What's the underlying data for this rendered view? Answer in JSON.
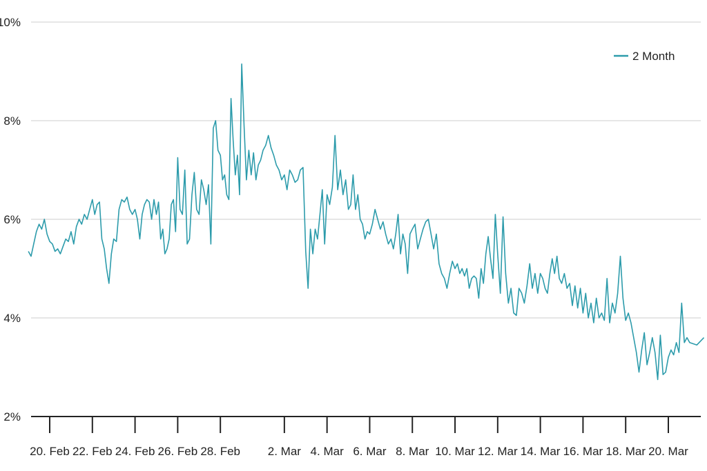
{
  "chart_data": {
    "type": "line",
    "title": "",
    "xlabel": "",
    "ylabel": "",
    "x_range": [
      "2024-02-19",
      "2024-03-21"
    ],
    "ylim": [
      2,
      10
    ],
    "y_ticks": [
      {
        "value": 2,
        "label": "2%"
      },
      {
        "value": 4,
        "label": "4%"
      },
      {
        "value": 6,
        "label": "6%"
      },
      {
        "value": 8,
        "label": "8%"
      },
      {
        "value": 10,
        "label": "10%"
      }
    ],
    "x_ticks": [
      {
        "date": "2024-02-20",
        "label": "20. Feb"
      },
      {
        "date": "2024-02-22",
        "label": "22. Feb"
      },
      {
        "date": "2024-02-24",
        "label": "24. Feb"
      },
      {
        "date": "2024-02-26",
        "label": "26. Feb"
      },
      {
        "date": "2024-02-28",
        "label": "28. Feb"
      },
      {
        "date": "2024-03-02",
        "label": "2. Mar"
      },
      {
        "date": "2024-03-04",
        "label": "4. Mar"
      },
      {
        "date": "2024-03-06",
        "label": "6. Mar"
      },
      {
        "date": "2024-03-08",
        "label": "8. Mar"
      },
      {
        "date": "2024-03-10",
        "label": "10. Mar"
      },
      {
        "date": "2024-03-12",
        "label": "12. Mar"
      },
      {
        "date": "2024-03-14",
        "label": "14. Mar"
      },
      {
        "date": "2024-03-16",
        "label": "16. Mar"
      },
      {
        "date": "2024-03-18",
        "label": "18. Mar"
      },
      {
        "date": "2024-03-20",
        "label": "20. Mar"
      }
    ],
    "grid": true,
    "legend_position": "top-right",
    "series": [
      {
        "name": "2 Month",
        "color": "#2c9bab",
        "points": [
          [
            "2024-02-19",
            5.35
          ],
          [
            "2024-02-19",
            5.25
          ],
          [
            "2024-02-19",
            5.5
          ],
          [
            "2024-02-19",
            5.75
          ],
          [
            "2024-02-19",
            5.9
          ],
          [
            "2024-02-19",
            5.8
          ],
          [
            "2024-02-19",
            6.0
          ],
          [
            "2024-02-19",
            5.7
          ],
          [
            "2024-02-20",
            5.55
          ],
          [
            "2024-02-20",
            5.5
          ],
          [
            "2024-02-20",
            5.35
          ],
          [
            "2024-02-20",
            5.4
          ],
          [
            "2024-02-20",
            5.3
          ],
          [
            "2024-02-20",
            5.45
          ],
          [
            "2024-02-20",
            5.6
          ],
          [
            "2024-02-20",
            5.55
          ],
          [
            "2024-02-21",
            5.75
          ],
          [
            "2024-02-21",
            5.5
          ],
          [
            "2024-02-21",
            5.85
          ],
          [
            "2024-02-21",
            6.0
          ],
          [
            "2024-02-21",
            5.9
          ],
          [
            "2024-02-21",
            6.1
          ],
          [
            "2024-02-21",
            6.0
          ],
          [
            "2024-02-21",
            6.2
          ],
          [
            "2024-02-22",
            6.4
          ],
          [
            "2024-02-22",
            6.1
          ],
          [
            "2024-02-22",
            6.3
          ],
          [
            "2024-02-22",
            6.35
          ],
          [
            "2024-02-22",
            5.6
          ],
          [
            "2024-02-22",
            5.4
          ],
          [
            "2024-02-22",
            5.0
          ],
          [
            "2024-02-22",
            4.7
          ],
          [
            "2024-02-22",
            5.3
          ],
          [
            "2024-02-23",
            5.6
          ],
          [
            "2024-02-23",
            5.55
          ],
          [
            "2024-02-23",
            6.2
          ],
          [
            "2024-02-23",
            6.4
          ],
          [
            "2024-02-23",
            6.35
          ],
          [
            "2024-02-23",
            6.45
          ],
          [
            "2024-02-23",
            6.2
          ],
          [
            "2024-02-23",
            6.1
          ],
          [
            "2024-02-24",
            6.2
          ],
          [
            "2024-02-24",
            6.0
          ],
          [
            "2024-02-24",
            5.6
          ],
          [
            "2024-02-24",
            6.1
          ],
          [
            "2024-02-24",
            6.3
          ],
          [
            "2024-02-24",
            6.4
          ],
          [
            "2024-02-24",
            6.35
          ],
          [
            "2024-02-24",
            6.0
          ],
          [
            "2024-02-24",
            6.4
          ],
          [
            "2024-02-25",
            6.1
          ],
          [
            "2024-02-25",
            6.35
          ],
          [
            "2024-02-25",
            5.6
          ],
          [
            "2024-02-25",
            5.8
          ],
          [
            "2024-02-25",
            5.3
          ],
          [
            "2024-02-25",
            5.4
          ],
          [
            "2024-02-25",
            5.6
          ],
          [
            "2024-02-25",
            6.3
          ],
          [
            "2024-02-25",
            6.4
          ],
          [
            "2024-02-25",
            5.75
          ],
          [
            "2024-02-26",
            7.25
          ],
          [
            "2024-02-26",
            6.2
          ],
          [
            "2024-02-26",
            6.1
          ],
          [
            "2024-02-26",
            7.0
          ],
          [
            "2024-02-26",
            5.5
          ],
          [
            "2024-02-26",
            5.6
          ],
          [
            "2024-02-26",
            6.5
          ],
          [
            "2024-02-26",
            6.95
          ],
          [
            "2024-02-26",
            6.2
          ],
          [
            "2024-02-27",
            6.1
          ],
          [
            "2024-02-27",
            6.8
          ],
          [
            "2024-02-27",
            6.6
          ],
          [
            "2024-02-27",
            6.3
          ],
          [
            "2024-02-27",
            6.7
          ],
          [
            "2024-02-27",
            5.5
          ],
          [
            "2024-02-27",
            7.85
          ],
          [
            "2024-02-27",
            8.0
          ],
          [
            "2024-02-27",
            7.4
          ],
          [
            "2024-02-28",
            7.3
          ],
          [
            "2024-02-28",
            6.8
          ],
          [
            "2024-02-28",
            6.9
          ],
          [
            "2024-02-28",
            6.5
          ],
          [
            "2024-02-28",
            6.4
          ],
          [
            "2024-02-28",
            8.45
          ],
          [
            "2024-02-28",
            7.6
          ],
          [
            "2024-02-28",
            6.9
          ],
          [
            "2024-02-28",
            7.3
          ],
          [
            "2024-02-28",
            6.5
          ],
          [
            "2024-02-29",
            9.15
          ],
          [
            "2024-02-29",
            7.9
          ],
          [
            "2024-02-29",
            6.8
          ],
          [
            "2024-02-29",
            7.4
          ],
          [
            "2024-02-29",
            6.9
          ],
          [
            "2024-02-29",
            7.35
          ],
          [
            "2024-02-29",
            6.8
          ],
          [
            "2024-02-29",
            7.1
          ],
          [
            "2024-02-29",
            7.2
          ],
          [
            "2024-03-01",
            7.4
          ],
          [
            "2024-03-01",
            7.5
          ],
          [
            "2024-03-01",
            7.7
          ],
          [
            "2024-03-01",
            7.45
          ],
          [
            "2024-03-01",
            7.3
          ],
          [
            "2024-03-01",
            7.1
          ],
          [
            "2024-03-01",
            7.0
          ],
          [
            "2024-03-01",
            6.8
          ],
          [
            "2024-03-02",
            6.9
          ],
          [
            "2024-03-02",
            6.6
          ],
          [
            "2024-03-02",
            7.0
          ],
          [
            "2024-03-02",
            6.9
          ],
          [
            "2024-03-02",
            6.75
          ],
          [
            "2024-03-02",
            6.8
          ],
          [
            "2024-03-02",
            7.0
          ],
          [
            "2024-03-02",
            7.05
          ],
          [
            "2024-03-03",
            5.35
          ],
          [
            "2024-03-03",
            4.6
          ],
          [
            "2024-03-03",
            5.8
          ],
          [
            "2024-03-03",
            5.3
          ],
          [
            "2024-03-03",
            5.8
          ],
          [
            "2024-03-03",
            5.6
          ],
          [
            "2024-03-03",
            6.1
          ],
          [
            "2024-03-03",
            6.6
          ],
          [
            "2024-03-03",
            5.5
          ],
          [
            "2024-03-04",
            6.5
          ],
          [
            "2024-03-04",
            6.3
          ],
          [
            "2024-03-04",
            6.65
          ],
          [
            "2024-03-04",
            7.7
          ],
          [
            "2024-03-04",
            6.6
          ],
          [
            "2024-03-04",
            7.0
          ],
          [
            "2024-03-04",
            6.5
          ],
          [
            "2024-03-04",
            6.8
          ],
          [
            "2024-03-05",
            6.2
          ],
          [
            "2024-03-05",
            6.3
          ],
          [
            "2024-03-05",
            6.9
          ],
          [
            "2024-03-05",
            6.2
          ],
          [
            "2024-03-05",
            6.5
          ],
          [
            "2024-03-05",
            6.0
          ],
          [
            "2024-03-05",
            5.9
          ],
          [
            "2024-03-05",
            5.6
          ],
          [
            "2024-03-05",
            5.75
          ],
          [
            "2024-03-06",
            5.7
          ],
          [
            "2024-03-06",
            5.9
          ],
          [
            "2024-03-06",
            6.2
          ],
          [
            "2024-03-06",
            6.0
          ],
          [
            "2024-03-06",
            5.8
          ],
          [
            "2024-03-06",
            5.95
          ],
          [
            "2024-03-06",
            5.7
          ],
          [
            "2024-03-06",
            5.5
          ],
          [
            "2024-03-07",
            5.6
          ],
          [
            "2024-03-07",
            5.4
          ],
          [
            "2024-03-07",
            5.7
          ],
          [
            "2024-03-07",
            6.1
          ],
          [
            "2024-03-07",
            5.3
          ],
          [
            "2024-03-07",
            5.7
          ],
          [
            "2024-03-07",
            5.5
          ],
          [
            "2024-03-07",
            4.9
          ],
          [
            "2024-03-07",
            5.7
          ],
          [
            "2024-03-08",
            5.8
          ],
          [
            "2024-03-08",
            5.9
          ],
          [
            "2024-03-08",
            5.4
          ],
          [
            "2024-03-08",
            5.6
          ],
          [
            "2024-03-08",
            5.8
          ],
          [
            "2024-03-08",
            5.95
          ],
          [
            "2024-03-08",
            6.0
          ],
          [
            "2024-03-08",
            5.7
          ],
          [
            "2024-03-09",
            5.4
          ],
          [
            "2024-03-09",
            5.7
          ],
          [
            "2024-03-09",
            5.1
          ],
          [
            "2024-03-09",
            4.9
          ],
          [
            "2024-03-09",
            4.8
          ],
          [
            "2024-03-09",
            4.6
          ],
          [
            "2024-03-09",
            4.9
          ],
          [
            "2024-03-09",
            5.15
          ],
          [
            "2024-03-10",
            5.0
          ],
          [
            "2024-03-10",
            5.1
          ],
          [
            "2024-03-10",
            4.9
          ],
          [
            "2024-03-10",
            5.0
          ],
          [
            "2024-03-10",
            4.85
          ],
          [
            "2024-03-10",
            5.0
          ],
          [
            "2024-03-10",
            4.6
          ],
          [
            "2024-03-10",
            4.8
          ],
          [
            "2024-03-10",
            4.85
          ],
          [
            "2024-03-11",
            4.8
          ],
          [
            "2024-03-11",
            4.4
          ],
          [
            "2024-03-11",
            5.0
          ],
          [
            "2024-03-11",
            4.7
          ],
          [
            "2024-03-11",
            5.3
          ],
          [
            "2024-03-11",
            5.65
          ],
          [
            "2024-03-11",
            5.2
          ],
          [
            "2024-03-11",
            4.8
          ],
          [
            "2024-03-11",
            6.1
          ],
          [
            "2024-03-12",
            5.3
          ],
          [
            "2024-03-12",
            4.5
          ],
          [
            "2024-03-12",
            6.05
          ],
          [
            "2024-03-12",
            4.9
          ],
          [
            "2024-03-12",
            4.3
          ],
          [
            "2024-03-12",
            4.6
          ],
          [
            "2024-03-12",
            4.1
          ],
          [
            "2024-03-12",
            4.05
          ],
          [
            "2024-03-13",
            4.6
          ],
          [
            "2024-03-13",
            4.5
          ],
          [
            "2024-03-13",
            4.3
          ],
          [
            "2024-03-13",
            4.65
          ],
          [
            "2024-03-13",
            5.1
          ],
          [
            "2024-03-13",
            4.6
          ],
          [
            "2024-03-13",
            4.9
          ],
          [
            "2024-03-13",
            4.5
          ],
          [
            "2024-03-14",
            4.9
          ],
          [
            "2024-03-14",
            4.8
          ],
          [
            "2024-03-14",
            4.6
          ],
          [
            "2024-03-14",
            4.5
          ],
          [
            "2024-03-14",
            4.9
          ],
          [
            "2024-03-14",
            5.2
          ],
          [
            "2024-03-14",
            4.9
          ],
          [
            "2024-03-14",
            5.25
          ],
          [
            "2024-03-14",
            4.8
          ],
          [
            "2024-03-15",
            4.7
          ],
          [
            "2024-03-15",
            4.9
          ],
          [
            "2024-03-15",
            4.6
          ],
          [
            "2024-03-15",
            4.7
          ],
          [
            "2024-03-15",
            4.25
          ],
          [
            "2024-03-15",
            4.65
          ],
          [
            "2024-03-15",
            4.2
          ],
          [
            "2024-03-15",
            4.6
          ],
          [
            "2024-03-16",
            4.1
          ],
          [
            "2024-03-16",
            4.5
          ],
          [
            "2024-03-16",
            4.0
          ],
          [
            "2024-03-16",
            4.3
          ],
          [
            "2024-03-16",
            3.9
          ],
          [
            "2024-03-16",
            4.4
          ],
          [
            "2024-03-16",
            4.0
          ],
          [
            "2024-03-16",
            4.1
          ],
          [
            "2024-03-17",
            3.95
          ],
          [
            "2024-03-17",
            4.8
          ],
          [
            "2024-03-17",
            3.9
          ],
          [
            "2024-03-17",
            4.3
          ],
          [
            "2024-03-17",
            4.1
          ],
          [
            "2024-03-17",
            4.5
          ],
          [
            "2024-03-17",
            5.25
          ],
          [
            "2024-03-17",
            4.4
          ],
          [
            "2024-03-18",
            3.95
          ],
          [
            "2024-03-18",
            4.1
          ],
          [
            "2024-03-18",
            3.9
          ],
          [
            "2024-03-18",
            3.6
          ],
          [
            "2024-03-18",
            3.3
          ],
          [
            "2024-03-18",
            2.9
          ],
          [
            "2024-03-18",
            3.35
          ],
          [
            "2024-03-18",
            3.7
          ],
          [
            "2024-03-19",
            3.05
          ],
          [
            "2024-03-19",
            3.3
          ],
          [
            "2024-03-19",
            3.6
          ],
          [
            "2024-03-19",
            3.3
          ],
          [
            "2024-03-19",
            2.75
          ],
          [
            "2024-03-19",
            3.65
          ],
          [
            "2024-03-19",
            2.85
          ],
          [
            "2024-03-19",
            2.9
          ],
          [
            "2024-03-20",
            3.2
          ],
          [
            "2024-03-20",
            3.35
          ],
          [
            "2024-03-20",
            3.25
          ],
          [
            "2024-03-20",
            3.5
          ],
          [
            "2024-03-20",
            3.3
          ],
          [
            "2024-03-20",
            4.3
          ],
          [
            "2024-03-20",
            3.5
          ],
          [
            "2024-03-20",
            3.6
          ],
          [
            "2024-03-21",
            3.5
          ],
          [
            "2024-03-21",
            3.45
          ],
          [
            "2024-03-21",
            3.6
          ]
        ]
      }
    ]
  }
}
